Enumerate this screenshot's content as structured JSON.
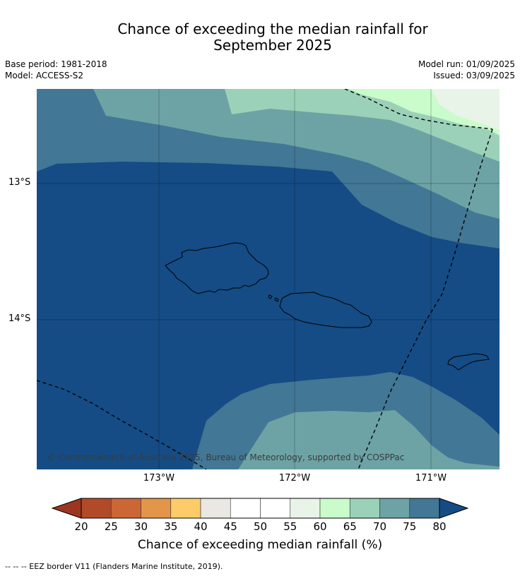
{
  "title_line1": "Chance of exceeding the median rainfall for",
  "title_line2": "September 2025",
  "meta": {
    "base_period": "Base period: 1981-2018",
    "model": "Model: ACCESS-S2",
    "model_run": "Model run: 01/09/2025",
    "issued": "Issued: 03/09/2025"
  },
  "map": {
    "lat_labels": [
      "13°S",
      "14°S"
    ],
    "lon_labels": [
      "173°W",
      "172°W",
      "171°W"
    ],
    "copyright": "© Commonwealth of Australia 2025, Bureau of Meteorology, supported by COSPPac",
    "colors": {
      "c80": "#154c85",
      "c75": "#427795",
      "c70": "#6da3a5",
      "c65": "#9bd1b8",
      "c60": "#c9fcca",
      "c55": "#e8f4e8"
    }
  },
  "colorbar": {
    "ticks": [
      "20",
      "25",
      "30",
      "35",
      "40",
      "45",
      "50",
      "55",
      "60",
      "65",
      "70",
      "75",
      "80"
    ],
    "colors": [
      "#9b3720",
      "#b24a27",
      "#cc6635",
      "#e39549",
      "#fdcc68",
      "#ebe7e3",
      "#ffffff",
      "#ffffff",
      "#e8f4e8",
      "#c9fcca",
      "#9bd1b8",
      "#6da3a5",
      "#427795",
      "#154c85"
    ],
    "label": "Chance of exceeding median rainfall (%)"
  },
  "footer": "--  --  -- EEZ border V11 (Flanders Marine Institute, 2019)."
}
